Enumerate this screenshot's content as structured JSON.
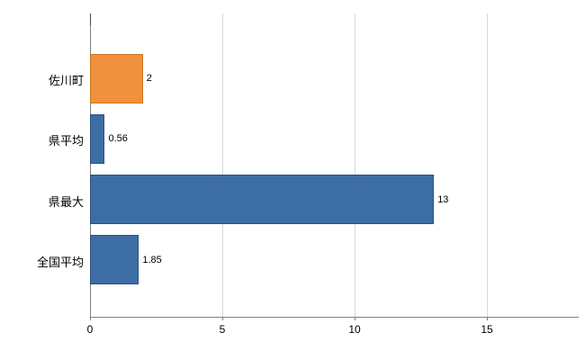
{
  "chart_data": {
    "type": "bar",
    "orientation": "horizontal",
    "title": "",
    "categories": [
      "佐川町",
      "県平均",
      "県最大",
      "全国平均"
    ],
    "values": [
      2,
      0.56,
      13,
      1.85
    ],
    "value_labels": [
      "2",
      "0.56",
      "13",
      "1.85"
    ],
    "bar_colors": [
      "#f0913d",
      "#3d6da5",
      "#3d6da5",
      "#3d6da5"
    ],
    "bar_border_colors": [
      "#c9761f",
      "#2c527e",
      "#2c527e",
      "#2c527e"
    ],
    "x_ticks": [
      0,
      5,
      10,
      15
    ],
    "x_tick_labels": [
      "0",
      "5",
      "10",
      "15"
    ],
    "xlim": [
      0,
      18.4
    ],
    "grid": true,
    "legend": "none",
    "colors": {
      "background": "#ffffff",
      "gridline": "#d9d9d9",
      "axis": "#7f7f7f",
      "axis_accent": "#4a4a4a",
      "text": "#000000"
    }
  }
}
